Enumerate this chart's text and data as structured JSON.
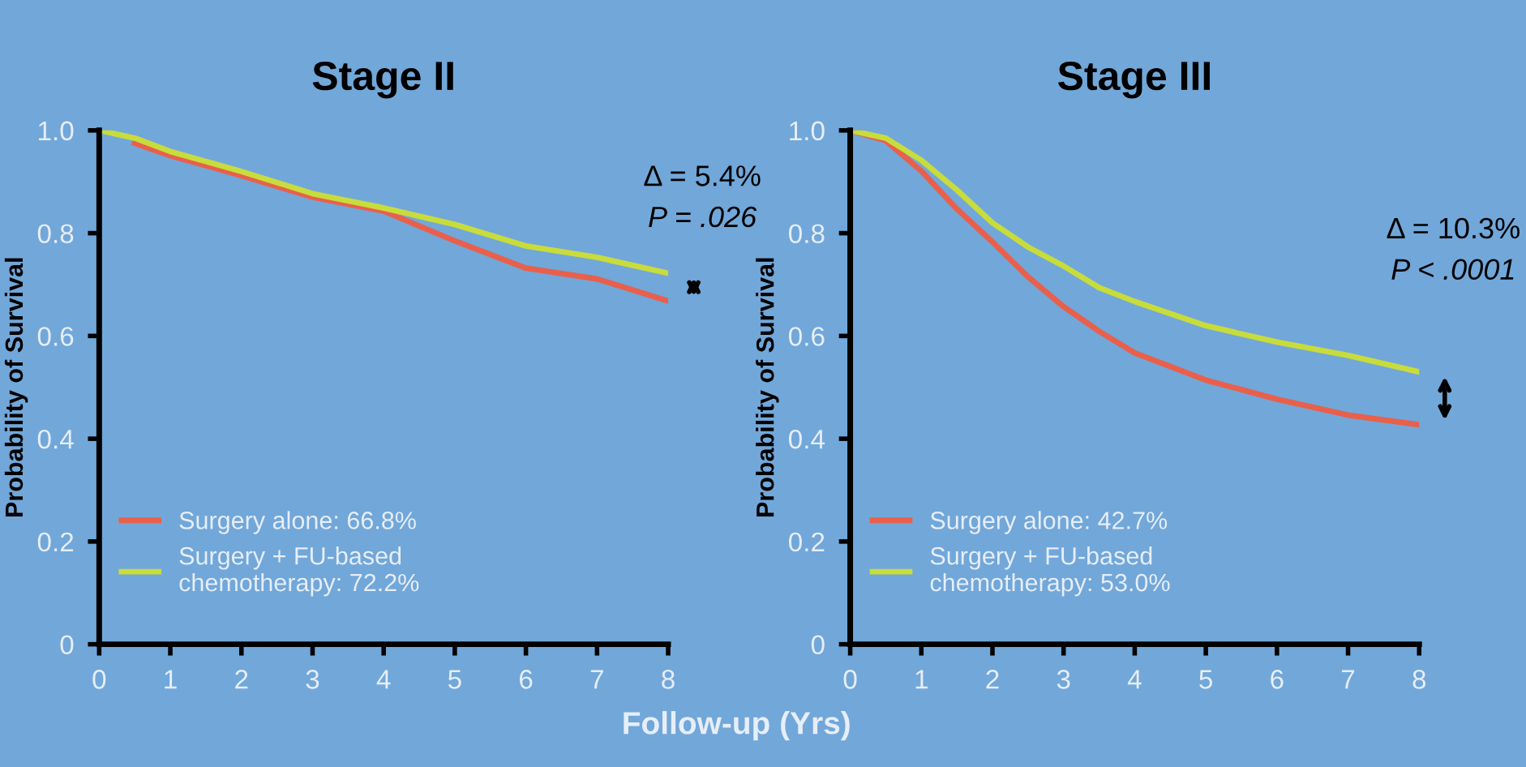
{
  "chart_data": [
    {
      "type": "line",
      "title": "Stage II",
      "ylabel": "Probability of Survival",
      "xlim": [
        0,
        8
      ],
      "ylim": [
        0,
        1
      ],
      "xticks": [
        0,
        1,
        2,
        3,
        4,
        5,
        6,
        7,
        8
      ],
      "yticks": [
        0,
        0.2,
        0.4,
        0.6,
        0.8,
        {
          "value": 1,
          "label": "1.0"
        }
      ],
      "legend": "bottom left",
      "grid": false,
      "x": [
        0,
        0.5,
        1,
        2,
        3,
        4,
        5,
        6,
        7,
        8
      ],
      "series": [
        {
          "name": "Surgery alone: 66.8%",
          "color": "#e8604c",
          "values": [
            null,
            0.975,
            0.951,
            0.912,
            0.87,
            0.843,
            0.785,
            0.732,
            0.711,
            0.668
          ]
        },
        {
          "name": "Surgery + FU-based chemotherapy: 72.2%",
          "color": "#c8dc3c",
          "values": [
            1.0,
            0.985,
            0.959,
            0.92,
            0.877,
            0.849,
            0.817,
            0.775,
            0.753,
            0.722
          ]
        }
      ],
      "annotations": [
        "Δ = 5.4%",
        "P = .026"
      ]
    },
    {
      "type": "line",
      "title": "Stage III",
      "ylabel": "Probability of Survival",
      "xlabel": "Follow-up (Yrs)",
      "xlim": [
        0,
        8
      ],
      "ylim": [
        0,
        1
      ],
      "xticks": [
        0,
        1,
        2,
        3,
        4,
        5,
        6,
        7,
        8
      ],
      "yticks": [
        0,
        0.2,
        0.4,
        0.6,
        0.8,
        {
          "value": 1,
          "label": "1.0"
        }
      ],
      "legend": "bottom left",
      "grid": false,
      "x": [
        0,
        0.5,
        1,
        1.5,
        2,
        2.5,
        3,
        3.5,
        4,
        5,
        6,
        7,
        8
      ],
      "series": [
        {
          "name": "Surgery alone: 42.7%",
          "color": "#e8604c",
          "values": [
            1.0,
            0.98,
            0.921,
            0.847,
            0.783,
            0.715,
            0.657,
            0.609,
            0.567,
            0.514,
            0.477,
            0.446,
            0.427
          ]
        },
        {
          "name": "Surgery + FU-based chemotherapy: 53.0%",
          "color": "#c8dc3c",
          "values": [
            1.0,
            0.985,
            0.942,
            0.884,
            0.82,
            0.773,
            0.736,
            0.694,
            0.667,
            0.62,
            0.588,
            0.562,
            0.53
          ]
        }
      ],
      "annotations": [
        "Δ = 10.3%",
        "P < .0001"
      ]
    }
  ]
}
